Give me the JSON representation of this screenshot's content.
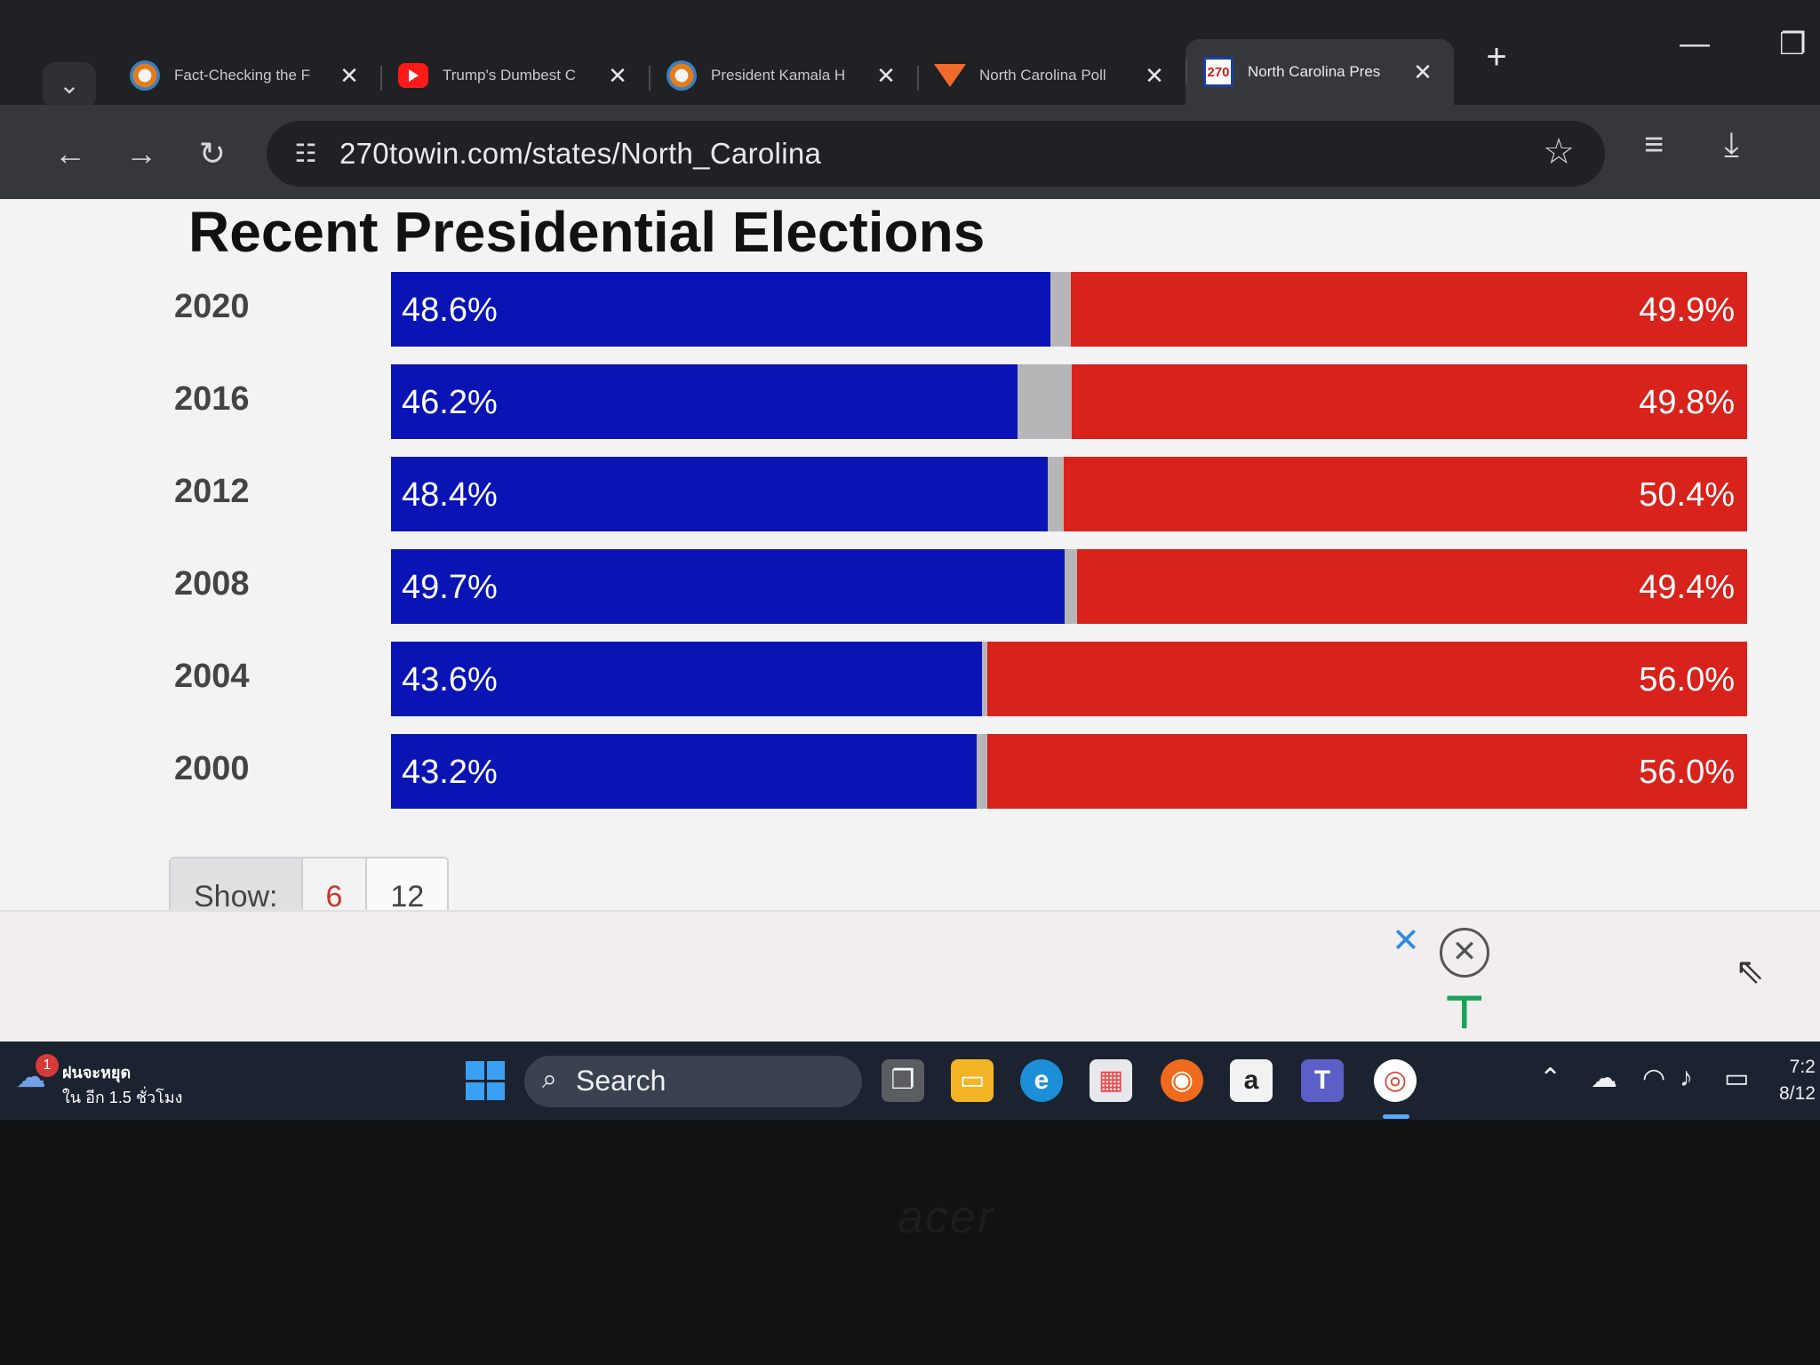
{
  "browser": {
    "tabs": [
      {
        "title": "Fact-Checking the F",
        "icon": "truth-or-fiction-icon",
        "active": false
      },
      {
        "title": "Trump's Dumbest C",
        "icon": "youtube-icon",
        "active": false
      },
      {
        "title": "President Kamala H",
        "icon": "truth-or-fiction-icon",
        "active": false
      },
      {
        "title": "North Carolina Poll",
        "icon": "triangle-logo-icon",
        "active": false
      },
      {
        "title": "North Carolina Pres",
        "icon": "270-logo-icon",
        "active": true
      }
    ],
    "favicon_270_text": "270",
    "url": "270towin.com/states/North_Carolina"
  },
  "page": {
    "section_title": "Recent Presidential Elections",
    "chart_data": {
      "type": "bar",
      "categories": [
        "2020",
        "2016",
        "2012",
        "2008",
        "2004",
        "2000"
      ],
      "series": [
        {
          "values": [
            48.6,
            46.2,
            48.4,
            49.7,
            43.6,
            43.2
          ],
          "color": "#0a14b4"
        },
        {
          "values": [
            49.9,
            49.8,
            50.4,
            49.4,
            56.0,
            56.0
          ],
          "color": "#d8221c"
        }
      ],
      "dem_labels": [
        "48.6%",
        "46.2%",
        "48.4%",
        "49.7%",
        "43.6%",
        "43.2%"
      ],
      "rep_labels": [
        "49.9%",
        "49.8%",
        "50.4%",
        "49.4%",
        "56.0%",
        "56.0%"
      ],
      "other_color": "#b6b6b8",
      "xlim": [
        0,
        100
      ]
    },
    "show": {
      "label": "Show:",
      "options": [
        "6",
        "12"
      ],
      "selected": "6"
    }
  },
  "taskbar": {
    "weather_badge": "1",
    "weather_line1": "ฝนจะหยุด",
    "weather_line2": "ใน อีก 1.5 ชั่วโมง",
    "search_label": "Search",
    "clock_time": "7:2",
    "clock_date": "8/12"
  },
  "device_brand": "acer"
}
